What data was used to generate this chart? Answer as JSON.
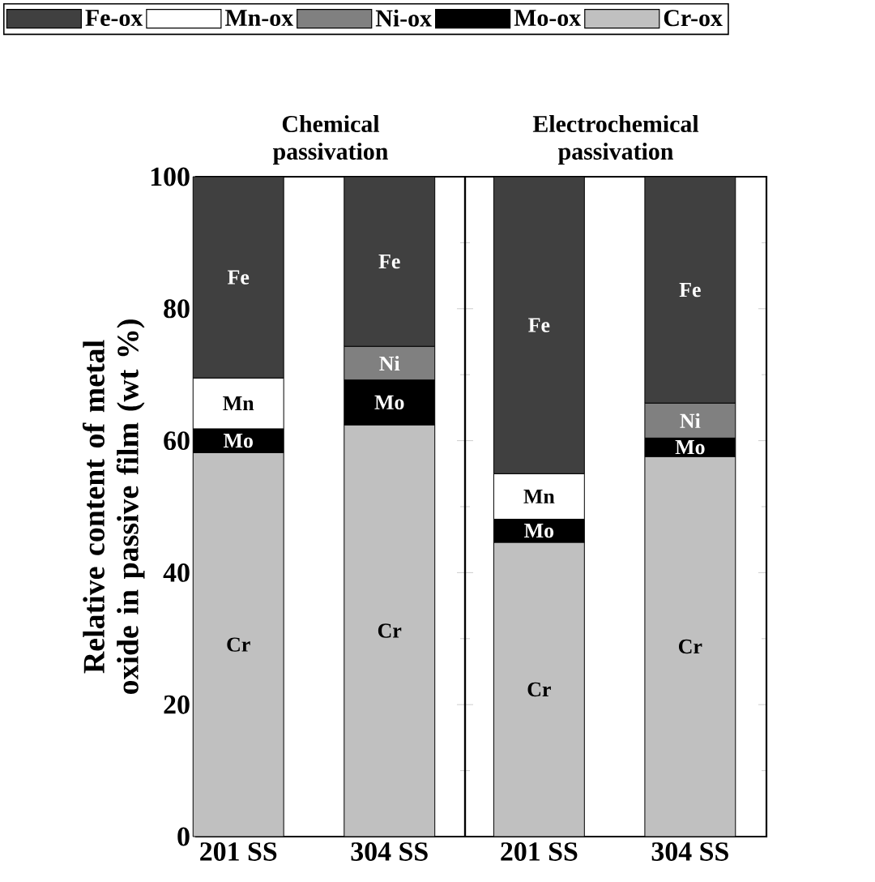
{
  "chart_data": [
    {
      "type": "bar",
      "stacked": true,
      "title": "Chemical passivation",
      "ylabel": "Relative content of metal oxide in passive film (wt %)",
      "categories": [
        "201 SS",
        "304 SS"
      ],
      "ylim": [
        0,
        100
      ],
      "yticks": [
        0,
        20,
        40,
        60,
        80,
        100
      ],
      "legend": "top",
      "series": [
        {
          "name": "Cr-ox",
          "color": "#c0c0c0",
          "values": [
            58.2,
            62.4
          ],
          "value_labels": [
            "Cr",
            "Cr"
          ]
        },
        {
          "name": "Mo-ox",
          "color": "#000000",
          "values": [
            3.6,
            6.8
          ],
          "value_labels": [
            "Mo",
            "Mo"
          ]
        },
        {
          "name": "Ni-ox",
          "color": "#808080",
          "values": [
            null,
            5.1
          ],
          "value_labels": [
            null,
            "Ni"
          ]
        },
        {
          "name": "Mn-ox",
          "color": "#ffffff",
          "values": [
            7.7,
            null
          ],
          "value_labels": [
            "Mn",
            null
          ]
        },
        {
          "name": "Fe-ox",
          "color": "#404040",
          "values": [
            30.5,
            25.7
          ],
          "value_labels": [
            "Fe",
            "Fe"
          ]
        }
      ]
    },
    {
      "type": "bar",
      "stacked": true,
      "title": "Electrochemical passivation",
      "categories": [
        "201 SS",
        "304 SS"
      ],
      "ylim": [
        0,
        100
      ],
      "yticks": [
        0,
        20,
        40,
        60,
        80,
        100
      ],
      "tick_labels": "x",
      "series": [
        {
          "color": "#c0c0c0",
          "values": [
            44.6,
            57.6
          ],
          "value_labels": [
            "Cr",
            "Cr"
          ]
        },
        {
          "color": "#000000",
          "values": [
            3.5,
            2.8
          ],
          "value_labels": [
            "Mo",
            "Mo"
          ]
        },
        {
          "color": "#808080",
          "values": [
            null,
            5.3
          ],
          "value_labels": [
            null,
            "Ni"
          ]
        },
        {
          "color": "#ffffff",
          "values": [
            6.9,
            null
          ],
          "value_labels": [
            "Mn",
            null
          ]
        },
        {
          "color": "#404040",
          "values": [
            45.0,
            34.3
          ],
          "value_labels": [
            "Fe",
            "Fe"
          ]
        }
      ]
    }
  ]
}
